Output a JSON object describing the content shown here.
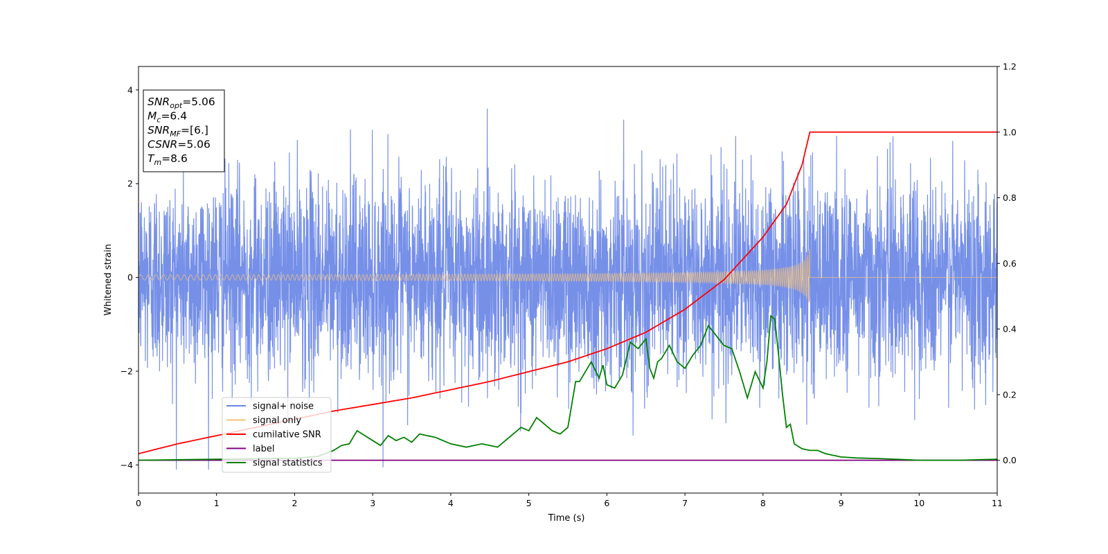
{
  "chart_data": {
    "type": "line",
    "xlabel": "Time (s)",
    "ylabel": "Whitened strain",
    "xlim": [
      0,
      11
    ],
    "ylim_left": [
      -4.6,
      4.5
    ],
    "ylim_right": [
      -0.1,
      1.2
    ],
    "xticks": [
      "0",
      "1",
      "2",
      "3",
      "4",
      "5",
      "6",
      "7",
      "8",
      "9",
      "10",
      "11"
    ],
    "yticks_left": [
      "−4",
      "−2",
      "0",
      "2",
      "4"
    ],
    "yticks_right": [
      "0.0",
      "0.2",
      "0.4",
      "0.6",
      "0.8",
      "1.0",
      "1.2"
    ],
    "grid": false,
    "legend_position": "lower-left",
    "colors": {
      "noise": "#6a87e6",
      "signal": "#f5c27a",
      "cumulative": "#ff0000",
      "label": "#800080",
      "statistics": "#008000"
    },
    "annotation": {
      "lines": [
        {
          "main": "SNR",
          "sub": "opt",
          "rest": "=5.06"
        },
        {
          "main": "M",
          "sub": "c",
          "rest": "=6.4"
        },
        {
          "main": "SNR",
          "sub": "MF",
          "rest": "=[6.]"
        },
        {
          "main": "CSNR",
          "sub": "",
          "rest": "=5.06"
        },
        {
          "main": "T",
          "sub": "m",
          "rest": "=8.6"
        }
      ]
    },
    "series": [
      {
        "name": "signal+ noise",
        "axis": "left",
        "description": "dense whitened noise, amplitude about ±2.5 with peaks to 4.1"
      },
      {
        "name": "signal only",
        "axis": "left",
        "chirp_end": 8.6,
        "peak_amplitude": 0.6
      },
      {
        "name": "cumilative SNR",
        "axis": "right",
        "x": [
          0,
          0.5,
          1,
          1.5,
          2,
          2.5,
          3,
          3.5,
          4,
          4.5,
          5,
          5.5,
          6,
          6.5,
          7,
          7.5,
          8,
          8.3,
          8.5,
          8.6,
          11
        ],
        "y": [
          0.02,
          0.05,
          0.075,
          0.1,
          0.125,
          0.15,
          0.17,
          0.19,
          0.215,
          0.24,
          0.27,
          0.3,
          0.34,
          0.39,
          0.46,
          0.55,
          0.68,
          0.78,
          0.9,
          1.0,
          1.0
        ]
      },
      {
        "name": "label",
        "axis": "right",
        "x": [
          0,
          11
        ],
        "y": [
          0,
          0
        ]
      },
      {
        "name": "signal statistics",
        "axis": "right",
        "x": [
          0,
          1,
          2,
          2.3,
          2.5,
          2.6,
          2.7,
          2.8,
          2.9,
          3.0,
          3.1,
          3.2,
          3.3,
          3.4,
          3.5,
          3.6,
          3.8,
          4.0,
          4.2,
          4.4,
          4.6,
          4.8,
          4.9,
          5.0,
          5.1,
          5.2,
          5.3,
          5.4,
          5.5,
          5.6,
          5.65,
          5.75,
          5.8,
          5.9,
          5.95,
          6.0,
          6.1,
          6.2,
          6.3,
          6.4,
          6.5,
          6.55,
          6.6,
          6.65,
          6.7,
          6.8,
          6.9,
          7.0,
          7.05,
          7.1,
          7.2,
          7.3,
          7.4,
          7.5,
          7.6,
          7.7,
          7.8,
          7.9,
          8.0,
          8.05,
          8.1,
          8.15,
          8.2,
          8.25,
          8.3,
          8.35,
          8.4,
          8.5,
          8.6,
          8.7,
          8.8,
          8.9,
          9.0,
          9.2,
          9.5,
          9.8,
          10,
          10.5,
          11
        ],
        "y": [
          0.0,
          0.003,
          0.006,
          0.012,
          0.03,
          0.045,
          0.05,
          0.09,
          0.075,
          0.06,
          0.045,
          0.075,
          0.06,
          0.07,
          0.055,
          0.08,
          0.07,
          0.05,
          0.04,
          0.05,
          0.04,
          0.08,
          0.1,
          0.09,
          0.13,
          0.11,
          0.09,
          0.08,
          0.1,
          0.24,
          0.24,
          0.28,
          0.3,
          0.25,
          0.29,
          0.23,
          0.22,
          0.26,
          0.36,
          0.34,
          0.37,
          0.28,
          0.25,
          0.3,
          0.31,
          0.35,
          0.3,
          0.28,
          0.3,
          0.32,
          0.35,
          0.41,
          0.38,
          0.35,
          0.34,
          0.27,
          0.19,
          0.27,
          0.22,
          0.3,
          0.44,
          0.43,
          0.32,
          0.2,
          0.1,
          0.11,
          0.05,
          0.035,
          0.03,
          0.03,
          0.02,
          0.015,
          0.01,
          0.007,
          0.005,
          0.002,
          0.0,
          0.0,
          0.003
        ]
      }
    ]
  }
}
